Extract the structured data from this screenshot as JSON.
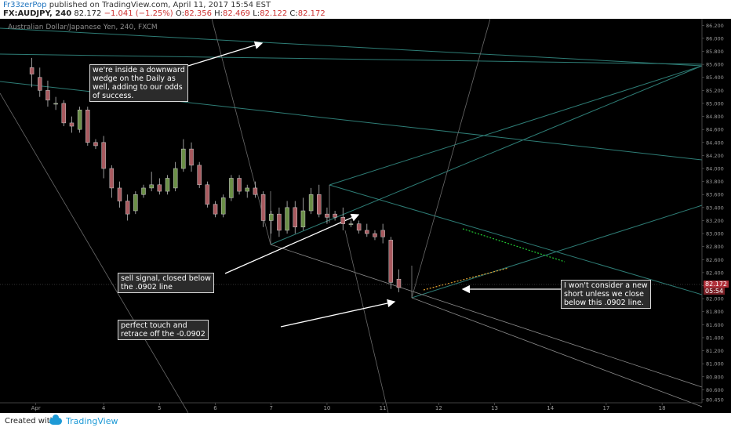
{
  "header": {
    "author": "Fr33zerPop",
    "published_text": "published on TradingView.com, April 11, 2017 15:54 EST",
    "symbol": "FX:AUDJPY, 240",
    "last_price": "82.172",
    "change": "−1.041 (−1.25%)",
    "o_label": "O:",
    "o_value": "82.356",
    "h_label": "H:",
    "h_value": "82.469",
    "l_label": "L:",
    "l_value": "82.122",
    "c_label": "C:",
    "c_value": "82.172"
  },
  "chart_title": "Australian Dollar/Japanese Yen, 240, FXCM",
  "footer": {
    "created_with": "Created with",
    "brand": "TradingView"
  },
  "annotations": {
    "wedge": "we're inside a downward\nwedge on the Daily as\nwell, adding to our odds\nof success.",
    "sell": "sell signal, closed below\nthe .0902 line",
    "touch": "perfect touch and\nretrace off the -0.0902",
    "consider": "I won't consider a new\nshort unless we close\nbelow this .0902 line."
  },
  "price_tags": {
    "current": "82.172",
    "countdown": "05:54"
  },
  "colors": {
    "up": "#6b8f47",
    "down": "#a85a5f",
    "background": "#000000",
    "trendline": "#2e7d76",
    "fib_line": "#8a8a8a",
    "dotted_green": "#22cc33",
    "dotted_orange": "#e0a030",
    "current_price": "#b0303a"
  },
  "chart_data": {
    "type": "candlestick",
    "title": "Australian Dollar/Japanese Yen, 240, FXCM",
    "ylim": [
      80.4,
      86.3
    ],
    "y_ticks": [
      "86.200",
      "86.000",
      "85.800",
      "85.600",
      "85.400",
      "85.200",
      "85.000",
      "84.800",
      "84.600",
      "84.400",
      "84.200",
      "84.000",
      "83.800",
      "83.600",
      "83.400",
      "83.200",
      "83.000",
      "82.800",
      "82.600",
      "82.400",
      "82.200",
      "82.000",
      "81.800",
      "81.600",
      "81.400",
      "81.200",
      "81.000",
      "80.800",
      "80.600",
      "80.450"
    ],
    "x_ticks": [
      "Apr",
      "4",
      "5",
      "6",
      "7",
      "10",
      "11",
      "12",
      "13",
      "14",
      "17",
      "18"
    ],
    "x_tick_positions": [
      0.5,
      9,
      16,
      23,
      30,
      37,
      44,
      51,
      58,
      65,
      72,
      79
    ],
    "xlim": [
      -3.5,
      84
    ],
    "candles": [
      {
        "o": 85.55,
        "h": 85.7,
        "l": 85.25,
        "c": 85.45
      },
      {
        "o": 85.4,
        "h": 85.55,
        "l": 85.1,
        "c": 85.2
      },
      {
        "o": 85.2,
        "h": 85.35,
        "l": 84.95,
        "c": 85.05
      },
      {
        "o": 85.0,
        "h": 85.1,
        "l": 84.9,
        "c": 85.0
      },
      {
        "o": 85.0,
        "h": 85.05,
        "l": 84.65,
        "c": 84.7
      },
      {
        "o": 84.7,
        "h": 84.8,
        "l": 84.55,
        "c": 84.65
      },
      {
        "o": 84.6,
        "h": 84.95,
        "l": 84.55,
        "c": 84.9
      },
      {
        "o": 84.9,
        "h": 84.95,
        "l": 84.35,
        "c": 84.4
      },
      {
        "o": 84.4,
        "h": 84.45,
        "l": 84.3,
        "c": 84.35
      },
      {
        "o": 84.4,
        "h": 84.5,
        "l": 83.85,
        "c": 84.0
      },
      {
        "o": 84.0,
        "h": 84.05,
        "l": 83.55,
        "c": 83.7
      },
      {
        "o": 83.7,
        "h": 83.8,
        "l": 83.4,
        "c": 83.5
      },
      {
        "o": 83.5,
        "h": 83.6,
        "l": 83.2,
        "c": 83.3
      },
      {
        "o": 83.35,
        "h": 83.65,
        "l": 83.3,
        "c": 83.6
      },
      {
        "o": 83.6,
        "h": 83.75,
        "l": 83.55,
        "c": 83.7
      },
      {
        "o": 83.7,
        "h": 83.95,
        "l": 83.65,
        "c": 83.75
      },
      {
        "o": 83.75,
        "h": 83.85,
        "l": 83.6,
        "c": 83.65
      },
      {
        "o": 83.65,
        "h": 83.9,
        "l": 83.6,
        "c": 83.85
      },
      {
        "o": 83.7,
        "h": 84.1,
        "l": 83.65,
        "c": 84.0
      },
      {
        "o": 84.0,
        "h": 84.45,
        "l": 83.95,
        "c": 84.3
      },
      {
        "o": 84.3,
        "h": 84.4,
        "l": 83.95,
        "c": 84.05
      },
      {
        "o": 84.05,
        "h": 84.1,
        "l": 83.7,
        "c": 83.75
      },
      {
        "o": 83.75,
        "h": 83.8,
        "l": 83.4,
        "c": 83.45
      },
      {
        "o": 83.45,
        "h": 83.5,
        "l": 83.25,
        "c": 83.3
      },
      {
        "o": 83.3,
        "h": 83.6,
        "l": 83.25,
        "c": 83.55
      },
      {
        "o": 83.55,
        "h": 83.9,
        "l": 83.5,
        "c": 83.85
      },
      {
        "o": 83.85,
        "h": 83.9,
        "l": 83.6,
        "c": 83.65
      },
      {
        "o": 83.65,
        "h": 83.75,
        "l": 83.55,
        "c": 83.7
      },
      {
        "o": 83.7,
        "h": 83.8,
        "l": 83.55,
        "c": 83.6
      },
      {
        "o": 83.6,
        "h": 83.65,
        "l": 83.1,
        "c": 83.2
      },
      {
        "o": 83.2,
        "h": 83.35,
        "l": 83.0,
        "c": 83.3
      },
      {
        "o": 83.3,
        "h": 83.4,
        "l": 82.95,
        "c": 83.05
      },
      {
        "o": 83.05,
        "h": 83.5,
        "l": 83.0,
        "c": 83.4
      },
      {
        "o": 83.4,
        "h": 83.5,
        "l": 83.0,
        "c": 83.1
      },
      {
        "o": 83.1,
        "h": 83.55,
        "l": 83.05,
        "c": 83.35
      },
      {
        "o": 83.35,
        "h": 83.7,
        "l": 83.3,
        "c": 83.6
      },
      {
        "o": 83.6,
        "h": 83.75,
        "l": 83.25,
        "c": 83.3
      },
      {
        "o": 83.3,
        "h": 83.4,
        "l": 83.15,
        "c": 83.25
      },
      {
        "o": 83.3,
        "h": 83.35,
        "l": 83.2,
        "c": 83.25
      },
      {
        "o": 83.25,
        "h": 83.4,
        "l": 83.05,
        "c": 83.15
      },
      {
        "o": 83.15,
        "h": 83.2,
        "l": 83.1,
        "c": 83.15
      },
      {
        "o": 83.15,
        "h": 83.2,
        "l": 83.0,
        "c": 83.05
      },
      {
        "o": 83.05,
        "h": 83.15,
        "l": 82.95,
        "c": 83.0
      },
      {
        "o": 83.0,
        "h": 83.05,
        "l": 82.9,
        "c": 82.95
      },
      {
        "o": 83.05,
        "h": 83.15,
        "l": 82.85,
        "c": 82.95
      },
      {
        "o": 82.9,
        "h": 82.95,
        "l": 82.15,
        "c": 82.25
      },
      {
        "o": 82.3,
        "h": 82.45,
        "l": 82.1,
        "c": 82.17
      }
    ]
  }
}
